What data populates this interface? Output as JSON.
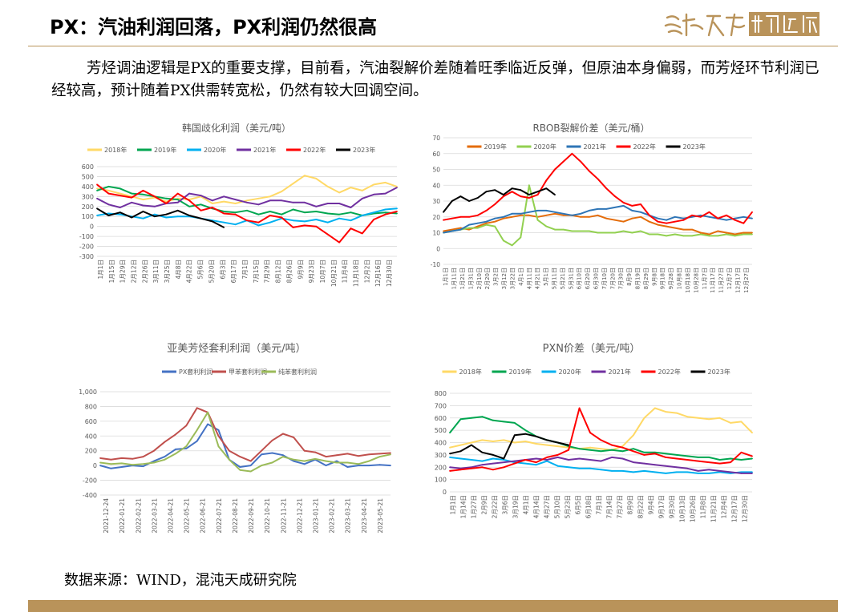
{
  "header": {
    "title": "PX：汽油利润回落，PX利润仍然很高",
    "logo_text": "混沌天成研究院"
  },
  "paragraph": "芳烃调油逻辑是PX的重要支撑，目前看，汽油裂解价差随着旺季临近反弹，但原油本身偏弱，而芳烃环节利润已经较高，预计随着PX供需转宽松，仍然有较大回调空间。",
  "source": "数据来源：WIND，混沌天成研究院",
  "colors": {
    "accent": "#b9935a",
    "y2018": "#ffd966",
    "y2019": "#00a650",
    "y2020": "#00b0f0",
    "y2021": "#7030a0",
    "y2022": "#ff0000",
    "y2023": "#000000"
  },
  "chart_data": [
    {
      "id": "korea",
      "type": "line",
      "title": "韩国歧化利润（美元/吨）",
      "ylim": [
        -300,
        600
      ],
      "yticks": [
        600,
        500,
        400,
        300,
        200,
        100,
        0,
        -100,
        -200,
        -300
      ],
      "x_tick_labels": [
        "1月1日",
        "1月15日",
        "1月29日",
        "2月12日",
        "2月26日",
        "3月11日",
        "3月25日",
        "4月8日",
        "4月22日",
        "5月6日",
        "5月20日",
        "6月3日",
        "6月17日",
        "7月1日",
        "7月15日",
        "7月29日",
        "8月12日",
        "8月26日",
        "9月9日",
        "9月23日",
        "10月7日",
        "10月21日",
        "11月4日",
        "11月18日",
        "12月2日",
        "12月16日",
        "12月30日"
      ],
      "legend_position": "top",
      "series": [
        {
          "name": "2018年",
          "color": "#ffd966",
          "values": [
            380,
            360,
            330,
            300,
            270,
            290,
            250,
            280,
            270,
            300,
            230,
            250,
            230,
            260,
            280,
            300,
            350,
            430,
            510,
            480,
            400,
            340,
            390,
            360,
            420,
            440,
            400
          ]
        },
        {
          "name": "2019年",
          "color": "#00a650",
          "values": [
            360,
            400,
            380,
            330,
            320,
            300,
            280,
            270,
            200,
            220,
            180,
            150,
            140,
            160,
            120,
            150,
            120,
            170,
            140,
            150,
            130,
            120,
            140,
            110,
            130,
            140,
            130
          ]
        },
        {
          "name": "2020年",
          "color": "#00b0f0",
          "values": [
            110,
            130,
            120,
            100,
            80,
            120,
            90,
            100,
            100,
            80,
            60,
            40,
            20,
            60,
            10,
            40,
            80,
            60,
            50,
            70,
            40,
            80,
            60,
            110,
            140,
            170,
            180
          ]
        },
        {
          "name": "2021年",
          "color": "#7030a0",
          "values": [
            280,
            220,
            190,
            240,
            210,
            200,
            230,
            240,
            330,
            310,
            260,
            300,
            270,
            240,
            220,
            260,
            260,
            240,
            240,
            200,
            230,
            230,
            190,
            280,
            320,
            330,
            390
          ]
        },
        {
          "name": "2022年",
          "color": "#ff0000",
          "values": [
            420,
            330,
            310,
            290,
            360,
            300,
            230,
            330,
            260,
            160,
            190,
            130,
            120,
            60,
            40,
            110,
            90,
            -10,
            10,
            0,
            -80,
            -160,
            -20,
            -70,
            70,
            120,
            150
          ]
        },
        {
          "name": "2023年",
          "color": "#000000",
          "values": [
            180,
            110,
            140,
            90,
            150,
            100,
            120,
            160,
            110,
            80,
            50,
            -10
          ]
        }
      ]
    },
    {
      "id": "rbob",
      "type": "line",
      "title": "RBOB裂解价差（美元/桶）",
      "ylim": [
        -10,
        70
      ],
      "yticks": [
        70,
        60,
        50,
        40,
        30,
        20,
        10,
        0,
        -10
      ],
      "x_tick_labels": [
        "1月1日",
        "1月11日",
        "1月21日",
        "1月31日",
        "2月10日",
        "2月20日",
        "3月2日",
        "3月12日",
        "3月22日",
        "4月1日",
        "4月11日",
        "4月21日",
        "5月1日",
        "5月11日",
        "5月21日",
        "5月31日",
        "6月10日",
        "6月20日",
        "6月30日",
        "7月10日",
        "7月20日",
        "7月30日",
        "8月9日",
        "8月19日",
        "8月29日",
        "9月8日",
        "9月18日",
        "9月28日",
        "10月8日",
        "10月18日",
        "10月28日",
        "11月7日",
        "11月17日",
        "11月27日",
        "12月7日",
        "12月17日",
        "12月27日"
      ],
      "legend_position": "top",
      "series": [
        {
          "name": "2019年",
          "color": "#e46c0a",
          "values": [
            11,
            12,
            13,
            12,
            14,
            16,
            17,
            19,
            20,
            21,
            21,
            20,
            21,
            22,
            21,
            21,
            20,
            20,
            21,
            19,
            18,
            17,
            19,
            20,
            17,
            15,
            14,
            13,
            12,
            12,
            10,
            9,
            11,
            10,
            9,
            10,
            10
          ]
        },
        {
          "name": "2020年",
          "color": "#92d050",
          "values": [
            10,
            11,
            12,
            13,
            13,
            15,
            14,
            5,
            2,
            7,
            40,
            18,
            14,
            12,
            12,
            11,
            11,
            11,
            10,
            10,
            10,
            11,
            10,
            11,
            9,
            9,
            8,
            9,
            8,
            8,
            9,
            8,
            8,
            9,
            8,
            9,
            9
          ]
        },
        {
          "name": "2021年",
          "color": "#2e75b6",
          "values": [
            10,
            11,
            12,
            15,
            16,
            17,
            19,
            20,
            22,
            22,
            23,
            24,
            24,
            23,
            22,
            21,
            22,
            24,
            25,
            25,
            26,
            27,
            24,
            23,
            21,
            19,
            18,
            20,
            19,
            20,
            21,
            20,
            19,
            18,
            19,
            20,
            19
          ]
        },
        {
          "name": "2022年",
          "color": "#ff0000",
          "values": [
            18,
            19,
            20,
            20,
            21,
            24,
            28,
            33,
            36,
            33,
            32,
            34,
            43,
            50,
            55,
            60,
            55,
            49,
            44,
            38,
            33,
            29,
            27,
            28,
            21,
            17,
            16,
            17,
            18,
            21,
            20,
            23,
            19,
            21,
            18,
            16,
            23
          ]
        },
        {
          "name": "2023年",
          "color": "#000000",
          "values": [
            23,
            30,
            33,
            30,
            32,
            36,
            37,
            34,
            38,
            37,
            34,
            36,
            38,
            34
          ]
        }
      ]
    },
    {
      "id": "us_asia",
      "type": "line",
      "title": "亚美芳烃套利利润（美元/吨）",
      "ylim": [
        -400,
        1000
      ],
      "yticks": [
        "1,000",
        "800",
        "600",
        "400",
        "200",
        "0",
        "-200",
        "-400"
      ],
      "ytick_values": [
        1000,
        800,
        600,
        400,
        200,
        0,
        -200,
        -400
      ],
      "x_tick_labels": [
        "2021-12-24",
        "2022-01-21",
        "2022-02-21",
        "2022-03-21",
        "2022-04-21",
        "2022-05-21",
        "2022-06-21",
        "2022-07-21",
        "2022-08-21",
        "2022-09-21",
        "2022-10-21",
        "2022-11-21",
        "2022-12-21",
        "2023-01-21",
        "2023-02-21",
        "2023-03-21",
        "2023-04-21",
        "2023-05-21"
      ],
      "legend_position": "top",
      "series": [
        {
          "name": "PX套利利润",
          "color": "#4472c4",
          "values": [
            0,
            -40,
            -20,
            0,
            -10,
            60,
            120,
            220,
            230,
            330,
            560,
            480,
            80,
            -20,
            0,
            150,
            170,
            140,
            60,
            20,
            80,
            0,
            60,
            -20,
            0,
            0,
            10,
            0
          ]
        },
        {
          "name": "甲苯套利利润",
          "color": "#c0504d",
          "values": [
            100,
            80,
            100,
            90,
            120,
            200,
            320,
            420,
            540,
            780,
            720,
            400,
            200,
            120,
            60,
            200,
            340,
            430,
            380,
            200,
            180,
            120,
            140,
            160,
            130,
            150,
            160,
            170
          ]
        },
        {
          "name": "纯苯套利利润",
          "color": "#9bbb59",
          "values": [
            40,
            20,
            30,
            10,
            20,
            40,
            80,
            160,
            260,
            480,
            720,
            260,
            80,
            -60,
            -80,
            0,
            40,
            120,
            80,
            60,
            90,
            60,
            40,
            40,
            20,
            60,
            120,
            150
          ]
        }
      ]
    },
    {
      "id": "pxn",
      "type": "line",
      "title": "PXN价差（美元/吨）",
      "ylim": [
        0,
        800
      ],
      "yticks": [
        800,
        700,
        600,
        500,
        400,
        300,
        200,
        100,
        0
      ],
      "x_tick_labels": [
        "1月1日",
        "1月14日",
        "1月27日",
        "2月9日",
        "2月22日",
        "3月6日",
        "3月19日",
        "4月1日",
        "4月14日",
        "4月27日",
        "5月10日",
        "5月23日",
        "6月5日",
        "6月18日",
        "7月1日",
        "7月14日",
        "7月27日",
        "8月9日",
        "8月22日",
        "9月4日",
        "9月17日",
        "9月30日",
        "10月13日",
        "10月26日",
        "11月8日",
        "11月21日",
        "12月4日",
        "12月17日",
        "12月30日"
      ],
      "legend_position": "top",
      "series": [
        {
          "name": "2018年",
          "color": "#ffd966",
          "values": [
            360,
            380,
            400,
            420,
            410,
            420,
            400,
            410,
            390,
            380,
            370,
            360,
            350,
            360,
            350,
            340,
            370,
            460,
            600,
            680,
            650,
            640,
            610,
            600,
            590,
            600,
            560,
            570,
            480
          ]
        },
        {
          "name": "2019年",
          "color": "#00a650",
          "values": [
            480,
            590,
            600,
            610,
            580,
            570,
            560,
            500,
            450,
            420,
            400,
            370,
            350,
            340,
            330,
            340,
            330,
            350,
            320,
            320,
            310,
            300,
            290,
            280,
            280,
            260,
            270,
            260,
            270
          ]
        },
        {
          "name": "2020年",
          "color": "#00b0f0",
          "values": [
            280,
            270,
            260,
            250,
            270,
            260,
            240,
            230,
            220,
            250,
            210,
            200,
            190,
            190,
            180,
            170,
            170,
            160,
            170,
            160,
            150,
            160,
            160,
            150,
            150,
            160,
            150,
            160,
            160
          ]
        },
        {
          "name": "2021年",
          "color": "#7030a0",
          "values": [
            200,
            190,
            200,
            220,
            230,
            240,
            250,
            260,
            270,
            260,
            280,
            260,
            270,
            260,
            250,
            280,
            270,
            240,
            230,
            220,
            210,
            200,
            190,
            170,
            180,
            170,
            160,
            150,
            150
          ]
        },
        {
          "name": "2022年",
          "color": "#ff0000",
          "values": [
            170,
            180,
            190,
            200,
            180,
            200,
            230,
            260,
            240,
            280,
            300,
            340,
            680,
            480,
            420,
            380,
            360,
            330,
            300,
            310,
            280,
            270,
            260,
            250,
            240,
            230,
            240,
            320,
            290
          ]
        },
        {
          "name": "2023年",
          "color": "#000000",
          "values": [
            310,
            330,
            380,
            320,
            300,
            270,
            460,
            470,
            450,
            420,
            400,
            380
          ]
        }
      ]
    }
  ]
}
